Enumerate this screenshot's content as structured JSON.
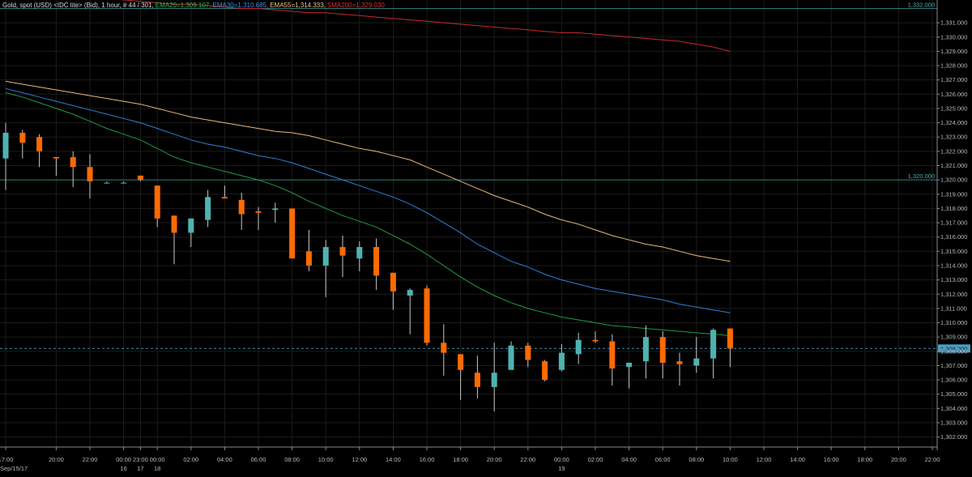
{
  "header": {
    "parts": [
      {
        "text": "Gold, spot (USD) <IDC lite> (Bid), 1 hour, # 44 / 301,",
        "color": "#d9d9d9"
      },
      {
        "text": "EMA20=1,309.107,",
        "color": "#2fbf4f"
      },
      {
        "text": "EMA30=1,310.685,",
        "color": "#3f8fe8"
      },
      {
        "text": "EMA55=1,314.333,",
        "color": "#f2c27a"
      },
      {
        "text": "SMA200=1,329.030",
        "color": "#e03030"
      }
    ]
  },
  "colors": {
    "background": "#000000",
    "grid": "#1c1c1c",
    "up_candle": "#4eb3b0",
    "down_candle": "#ff6a00",
    "wick": "#c9c9c9",
    "ema20": "#1f9a45",
    "ema30": "#2f7fd8",
    "ema55": "#e9b878",
    "sma200": "#c62a2a",
    "level_line": "#2c7b7b",
    "price_line": "#3a8fbf"
  },
  "chart_data": {
    "type": "candlestick",
    "title": "Gold, spot (USD) <IDC lite> (Bid), 1 hour",
    "ylim": [
      1301.3,
      1331.8
    ],
    "y_ticks": [
      1302,
      1303,
      1304,
      1305,
      1306,
      1307,
      1308,
      1309,
      1310,
      1311,
      1312,
      1313,
      1314,
      1315,
      1316,
      1317,
      1318,
      1319,
      1320,
      1321,
      1322,
      1323,
      1324,
      1325,
      1326,
      1327,
      1328,
      1329,
      1330,
      1331
    ],
    "y_tick_labels": [
      "1,302.000",
      "1,303.000",
      "1,304.000",
      "1,305.000",
      "1,306.000",
      "1,307.000",
      "1,308.000",
      "1,309.000",
      "1,310.000",
      "1,311.000",
      "1,312.000",
      "1,313.000",
      "1,314.000",
      "1,315.000",
      "1,316.000",
      "1,317.000",
      "1,318.000",
      "1,319.000",
      "1,320.000",
      "1,321.000",
      "1,322.000",
      "1,323.000",
      "1,324.000",
      "1,325.000",
      "1,326.000",
      "1,327.000",
      "1,328.000",
      "1,329.000",
      "1,330.000",
      "1,331.000"
    ],
    "x_labels": [
      {
        "i": 0,
        "text": "17:00"
      },
      {
        "i": 3,
        "text": "20:00"
      },
      {
        "i": 5,
        "text": "22:00"
      },
      {
        "i": 7,
        "text": "00:00"
      },
      {
        "i": 8,
        "text": "23:00"
      },
      {
        "i": 9,
        "text": "00:00"
      },
      {
        "i": 11,
        "text": "02:00"
      },
      {
        "i": 13,
        "text": "04:00"
      },
      {
        "i": 15,
        "text": "06:00"
      },
      {
        "i": 17,
        "text": "08:00"
      },
      {
        "i": 19,
        "text": "10:00"
      },
      {
        "i": 21,
        "text": "12:00"
      },
      {
        "i": 23,
        "text": "14:00"
      },
      {
        "i": 25,
        "text": "16:00"
      },
      {
        "i": 27,
        "text": "18:00"
      },
      {
        "i": 29,
        "text": "20:00"
      },
      {
        "i": 31,
        "text": "22:00"
      },
      {
        "i": 33,
        "text": "00:00"
      },
      {
        "i": 35,
        "text": "02:00"
      },
      {
        "i": 37,
        "text": "04:00"
      },
      {
        "i": 39,
        "text": "06:00"
      },
      {
        "i": 41,
        "text": "08:00"
      },
      {
        "i": 43,
        "text": "10:00"
      },
      {
        "i": 45,
        "text": "12:00"
      },
      {
        "i": 47,
        "text": "14:00"
      },
      {
        "i": 49,
        "text": "16:00"
      },
      {
        "i": 51,
        "text": "18:00"
      },
      {
        "i": 53,
        "text": "20:00"
      },
      {
        "i": 55,
        "text": "22:00"
      }
    ],
    "date_labels": [
      {
        "i": 0,
        "text": "Sep/15/17"
      },
      {
        "i": 7,
        "text": "16"
      },
      {
        "i": 8,
        "text": "17"
      },
      {
        "i": 9,
        "text": "18"
      },
      {
        "i": 33,
        "text": "19"
      }
    ],
    "candles": [
      {
        "o": 1321.5,
        "h": 1324.0,
        "l": 1319.3,
        "c": 1323.3
      },
      {
        "o": 1323.3,
        "h": 1323.5,
        "l": 1321.5,
        "c": 1322.6
      },
      {
        "o": 1323.0,
        "h": 1323.2,
        "l": 1320.9,
        "c": 1322.0
      },
      {
        "o": 1321.6,
        "h": 1321.6,
        "l": 1320.3,
        "c": 1321.5
      },
      {
        "o": 1321.6,
        "h": 1322.0,
        "l": 1319.5,
        "c": 1320.9
      },
      {
        "o": 1320.9,
        "h": 1321.8,
        "l": 1318.7,
        "c": 1319.9
      },
      {
        "o": 1319.8,
        "h": 1319.9,
        "l": 1319.8,
        "c": 1319.8
      },
      {
        "o": 1319.8,
        "h": 1319.9,
        "l": 1319.8,
        "c": 1319.8
      },
      {
        "o": 1320.3,
        "h": 1320.3,
        "l": 1319.9,
        "c": 1320.0
      },
      {
        "o": 1319.6,
        "h": 1319.6,
        "l": 1316.7,
        "c": 1317.3
      },
      {
        "o": 1317.5,
        "h": 1317.5,
        "l": 1314.1,
        "c": 1316.3
      },
      {
        "o": 1316.3,
        "h": 1317.3,
        "l": 1315.3,
        "c": 1317.3
      },
      {
        "o": 1317.2,
        "h": 1319.3,
        "l": 1316.7,
        "c": 1318.8
      },
      {
        "o": 1318.8,
        "h": 1319.6,
        "l": 1318.8,
        "c": 1318.7
      },
      {
        "o": 1318.6,
        "h": 1319.1,
        "l": 1316.5,
        "c": 1317.6
      },
      {
        "o": 1317.8,
        "h": 1318.1,
        "l": 1316.5,
        "c": 1317.7
      },
      {
        "o": 1317.9,
        "h": 1318.4,
        "l": 1317.0,
        "c": 1318.0
      },
      {
        "o": 1318.0,
        "h": 1318.0,
        "l": 1314.5,
        "c": 1314.5
      },
      {
        "o": 1315.0,
        "h": 1316.5,
        "l": 1313.6,
        "c": 1314.0
      },
      {
        "o": 1314.0,
        "h": 1315.8,
        "l": 1311.8,
        "c": 1315.3
      },
      {
        "o": 1315.3,
        "h": 1316.1,
        "l": 1313.2,
        "c": 1314.7
      },
      {
        "o": 1314.5,
        "h": 1315.7,
        "l": 1313.6,
        "c": 1315.3
      },
      {
        "o": 1315.3,
        "h": 1315.9,
        "l": 1312.3,
        "c": 1313.3
      },
      {
        "o": 1313.5,
        "h": 1313.5,
        "l": 1310.9,
        "c": 1312.2
      },
      {
        "o": 1311.9,
        "h": 1312.4,
        "l": 1309.2,
        "c": 1312.3
      },
      {
        "o": 1312.4,
        "h": 1312.6,
        "l": 1308.4,
        "c": 1308.6
      },
      {
        "o": 1308.6,
        "h": 1309.9,
        "l": 1306.3,
        "c": 1307.9
      },
      {
        "o": 1307.8,
        "h": 1307.8,
        "l": 1304.6,
        "c": 1306.7
      },
      {
        "o": 1306.5,
        "h": 1307.7,
        "l": 1304.7,
        "c": 1305.5
      },
      {
        "o": 1305.5,
        "h": 1308.6,
        "l": 1303.8,
        "c": 1306.5
      },
      {
        "o": 1306.7,
        "h": 1308.7,
        "l": 1306.7,
        "c": 1308.4
      },
      {
        "o": 1308.4,
        "h": 1308.6,
        "l": 1306.9,
        "c": 1307.4
      },
      {
        "o": 1307.3,
        "h": 1307.4,
        "l": 1305.9,
        "c": 1306.0
      },
      {
        "o": 1306.7,
        "h": 1308.5,
        "l": 1306.6,
        "c": 1307.9
      },
      {
        "o": 1307.8,
        "h": 1309.3,
        "l": 1307.1,
        "c": 1308.8
      },
      {
        "o": 1308.8,
        "h": 1309.4,
        "l": 1308.6,
        "c": 1308.7
      },
      {
        "o": 1308.7,
        "h": 1309.2,
        "l": 1305.6,
        "c": 1306.8
      },
      {
        "o": 1306.9,
        "h": 1307.2,
        "l": 1305.4,
        "c": 1307.2
      },
      {
        "o": 1307.3,
        "h": 1309.8,
        "l": 1306.1,
        "c": 1309.0
      },
      {
        "o": 1309.0,
        "h": 1309.4,
        "l": 1306.1,
        "c": 1307.2
      },
      {
        "o": 1307.3,
        "h": 1307.9,
        "l": 1305.6,
        "c": 1307.1
      },
      {
        "o": 1307.0,
        "h": 1309.0,
        "l": 1306.5,
        "c": 1307.5
      },
      {
        "o": 1307.5,
        "h": 1309.6,
        "l": 1306.1,
        "c": 1309.5
      },
      {
        "o": 1309.6,
        "h": 1309.6,
        "l": 1306.9,
        "c": 1308.2
      }
    ],
    "series": [
      {
        "name": "EMA20",
        "values": [
          1326.1,
          1325.8,
          1325.4,
          1325.0,
          1324.6,
          1324.1,
          1323.6,
          1323.2,
          1322.8,
          1322.2,
          1321.6,
          1321.2,
          1320.9,
          1320.6,
          1320.3,
          1320.0,
          1319.6,
          1319.1,
          1318.5,
          1318.0,
          1317.5,
          1317.1,
          1316.7,
          1316.1,
          1315.5,
          1314.8,
          1314.0,
          1313.2,
          1312.5,
          1311.9,
          1311.4,
          1311.0,
          1310.7,
          1310.4,
          1310.2,
          1310.0,
          1309.8,
          1309.7,
          1309.6,
          1309.5,
          1309.4,
          1309.3,
          1309.2,
          1309.1
        ]
      },
      {
        "name": "EMA30",
        "values": [
          1326.4,
          1326.1,
          1325.8,
          1325.5,
          1325.2,
          1324.9,
          1324.6,
          1324.3,
          1324.0,
          1323.6,
          1323.2,
          1322.8,
          1322.5,
          1322.3,
          1322.0,
          1321.7,
          1321.5,
          1321.2,
          1320.8,
          1320.4,
          1320.0,
          1319.6,
          1319.2,
          1318.8,
          1318.3,
          1317.7,
          1317.0,
          1316.3,
          1315.5,
          1314.9,
          1314.3,
          1313.9,
          1313.4,
          1313.0,
          1312.7,
          1312.4,
          1312.2,
          1312.0,
          1311.8,
          1311.6,
          1311.3,
          1311.1,
          1310.9,
          1310.7
        ]
      },
      {
        "name": "EMA55",
        "values": [
          1326.9,
          1326.7,
          1326.5,
          1326.3,
          1326.1,
          1325.9,
          1325.7,
          1325.5,
          1325.3,
          1325.0,
          1324.7,
          1324.4,
          1324.2,
          1324.0,
          1323.8,
          1323.6,
          1323.4,
          1323.3,
          1323.1,
          1322.8,
          1322.5,
          1322.2,
          1322.0,
          1321.7,
          1321.4,
          1320.9,
          1320.4,
          1319.9,
          1319.4,
          1318.9,
          1318.5,
          1318.1,
          1317.6,
          1317.2,
          1316.9,
          1316.5,
          1316.1,
          1315.8,
          1315.5,
          1315.3,
          1315.0,
          1314.7,
          1314.5,
          1314.3
        ]
      },
      {
        "name": "SMA200",
        "values": [
          1333.2,
          1333.1,
          1333.0,
          1332.9,
          1332.8,
          1332.8,
          1332.7,
          1332.6,
          1332.5,
          1332.4,
          1332.3,
          1332.3,
          1332.2,
          1332.1,
          1332.0,
          1332.0,
          1331.9,
          1331.8,
          1331.7,
          1331.7,
          1331.6,
          1331.5,
          1331.4,
          1331.3,
          1331.2,
          1331.1,
          1331.0,
          1330.9,
          1330.8,
          1330.7,
          1330.6,
          1330.5,
          1330.4,
          1330.3,
          1330.3,
          1330.2,
          1330.1,
          1330.0,
          1329.9,
          1329.8,
          1329.7,
          1329.5,
          1329.3,
          1329.0
        ]
      }
    ],
    "levels": [
      {
        "value": 1332.0,
        "label": "1,332.000",
        "style": "solid"
      },
      {
        "value": 1320.0,
        "label": "1,320.000",
        "style": "solid"
      },
      {
        "value": 1308.2,
        "label": "1,308.200",
        "style": "dashed"
      }
    ]
  }
}
